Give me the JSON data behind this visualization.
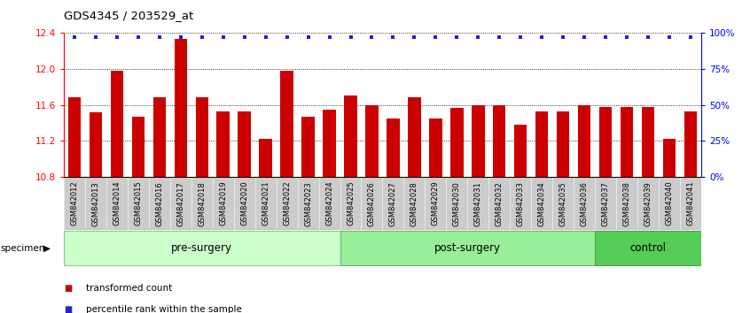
{
  "title": "GDS4345 / 203529_at",
  "categories": [
    "GSM842012",
    "GSM842013",
    "GSM842014",
    "GSM842015",
    "GSM842016",
    "GSM842017",
    "GSM842018",
    "GSM842019",
    "GSM842020",
    "GSM842021",
    "GSM842022",
    "GSM842023",
    "GSM842024",
    "GSM842025",
    "GSM842026",
    "GSM842027",
    "GSM842028",
    "GSM842029",
    "GSM842030",
    "GSM842031",
    "GSM842032",
    "GSM842033",
    "GSM842034",
    "GSM842035",
    "GSM842036",
    "GSM842037",
    "GSM842038",
    "GSM842039",
    "GSM842040",
    "GSM842041"
  ],
  "values": [
    11.68,
    11.52,
    11.98,
    11.47,
    11.68,
    12.33,
    11.68,
    11.53,
    11.53,
    11.22,
    11.98,
    11.47,
    11.55,
    11.7,
    11.6,
    11.45,
    11.68,
    11.45,
    11.57,
    11.6,
    11.6,
    11.38,
    11.53,
    11.53,
    11.6,
    11.58,
    11.58,
    11.58,
    11.22,
    11.53
  ],
  "ylim": [
    10.8,
    12.4
  ],
  "yticks": [
    10.8,
    11.2,
    11.6,
    12.0,
    12.4
  ],
  "right_ytick_labels": [
    "0%",
    "25%",
    "50%",
    "75%",
    "100%"
  ],
  "right_ytick_vals": [
    0,
    25,
    50,
    75,
    100
  ],
  "bar_color": "#cc0000",
  "percentile_color": "#2222cc",
  "groups": [
    {
      "label": "pre-surgery",
      "start": 0,
      "end": 13,
      "color": "#ccffcc",
      "edge": "#88cc88"
    },
    {
      "label": "post-surgery",
      "start": 13,
      "end": 25,
      "color": "#99ee99",
      "edge": "#66bb66"
    },
    {
      "label": "control",
      "start": 25,
      "end": 30,
      "color": "#55cc55",
      "edge": "#44aa44"
    }
  ],
  "specimen_label": "specimen",
  "legend": [
    {
      "label": "transformed count",
      "color": "#cc0000"
    },
    {
      "label": "percentile rank within the sample",
      "color": "#2222cc"
    }
  ],
  "xtick_bg": "#cccccc"
}
